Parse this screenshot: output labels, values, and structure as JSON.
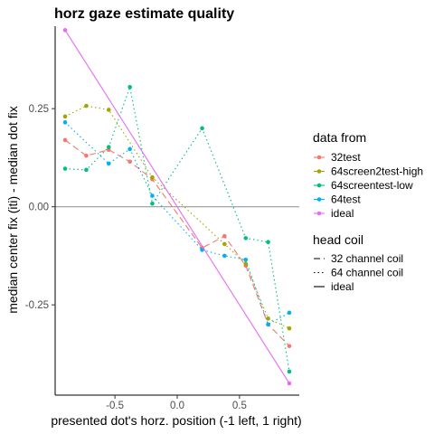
{
  "chart_data": {
    "type": "line",
    "title": "horz gaze estimate quality",
    "xlabel": "presented dot's horz. position (-1 left, 1 right)",
    "ylabel": "median center fix (iti) - median dot fix",
    "xlim": [
      -0.98,
      0.98
    ],
    "ylim": [
      -0.48,
      0.46
    ],
    "x_ticks": [
      -0.5,
      0.0,
      0.5
    ],
    "x_tick_labels": [
      "-0.5",
      "0.0",
      "0.5"
    ],
    "y_ticks": [
      -0.25,
      0.0,
      0.25
    ],
    "y_tick_labels": [
      "-0.25",
      "0.00",
      "0.25"
    ],
    "grid": false,
    "reference_line_y": 0,
    "series": [
      {
        "name": "32test",
        "color": "#F8766D",
        "linetype": "dashed",
        "x": [
          -0.9,
          -0.73,
          -0.55,
          -0.38,
          -0.2,
          0.2,
          0.38,
          0.55,
          0.73,
          0.9
        ],
        "y": [
          0.17,
          0.13,
          0.145,
          0.115,
          0.07,
          -0.105,
          -0.075,
          -0.15,
          -0.3,
          -0.355
        ]
      },
      {
        "name": "64screen2test-high",
        "color": "#A3A500",
        "linetype": "dotted",
        "x": [
          -0.9,
          -0.73,
          -0.55,
          -0.2,
          0.38,
          0.55,
          0.73,
          0.9
        ],
        "y": [
          0.23,
          0.257,
          0.247,
          0.075,
          -0.095,
          -0.145,
          -0.285,
          -0.31
        ]
      },
      {
        "name": "64screentest-low",
        "color": "#00BF7D",
        "linetype": "dotted",
        "x": [
          -0.9,
          -0.73,
          -0.55,
          -0.38,
          -0.2,
          0.2,
          0.55,
          0.73,
          0.9
        ],
        "y": [
          0.097,
          0.094,
          0.152,
          0.305,
          0.008,
          0.2,
          -0.08,
          -0.09,
          -0.42
        ]
      },
      {
        "name": "64test",
        "color": "#00B0F6",
        "linetype": "dotted",
        "x": [
          -0.9,
          -0.55,
          -0.38,
          -0.2,
          0.2,
          0.38,
          0.55,
          0.73,
          0.9
        ],
        "y": [
          0.215,
          0.11,
          0.147,
          0.028,
          -0.11,
          -0.125,
          -0.135,
          -0.3,
          -0.27
        ]
      },
      {
        "name": "ideal",
        "color": "#E76BF3",
        "linetype": "solid",
        "x": [
          -0.9,
          0.9
        ],
        "y": [
          0.45,
          -0.45
        ]
      }
    ],
    "legend": [
      {
        "title": "data from",
        "items": [
          {
            "label": "32test",
            "color": "#F8766D"
          },
          {
            "label": "64screen2test-high",
            "color": "#A3A500"
          },
          {
            "label": "64screentest-low",
            "color": "#00BF7D"
          },
          {
            "label": "64test",
            "color": "#00B0F6"
          },
          {
            "label": "ideal",
            "color": "#E76BF3"
          }
        ]
      },
      {
        "title": "head coil",
        "items": [
          {
            "label": "32 channel coil",
            "linetype": "dashed"
          },
          {
            "label": "64 channel coil",
            "linetype": "dotted"
          },
          {
            "label": "ideal",
            "linetype": "solid"
          }
        ]
      }
    ],
    "legend_position": "right"
  }
}
